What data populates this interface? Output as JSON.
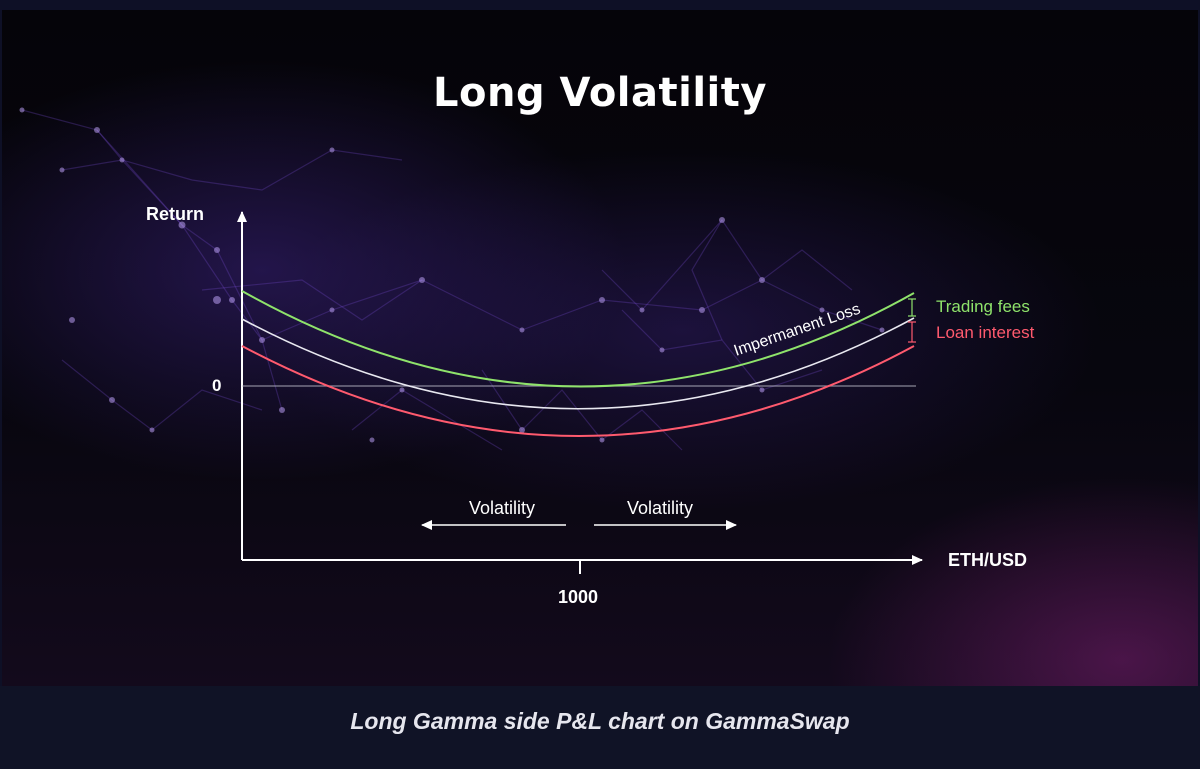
{
  "title": "Long Volatility",
  "caption": "Long Gamma side P&L chart on GammaSwap",
  "axes": {
    "y_label": "Return",
    "x_label": "ETH/USD",
    "zero_label": "0",
    "center_tick": "1000"
  },
  "annotations": {
    "volatility_left": "Volatility",
    "volatility_right": "Volatility",
    "impermanent_loss": "Impermanent Loss"
  },
  "legend": {
    "trading_fees": "Trading fees",
    "loan_interest": "Loan interest"
  },
  "colors": {
    "trading_fees": "#8fe36b",
    "loan_interest": "#ff5a6e",
    "impermanent_loss": "#e8e8f0",
    "axis": "#ffffff"
  },
  "chart_data": {
    "type": "line",
    "series": [
      {
        "name": "Trading fees",
        "shape": "parabola",
        "min_at_x": 1000,
        "relative_level": "highest"
      },
      {
        "name": "Impermanent Loss",
        "shape": "parabola",
        "min_at_x": 1000,
        "relative_level": "middle"
      },
      {
        "name": "Loan interest",
        "shape": "parabola",
        "min_at_x": 1000,
        "relative_level": "lowest"
      }
    ],
    "x_ticks": [
      "1000"
    ],
    "y_ticks": [
      "0"
    ],
    "xlabel": "ETH/USD",
    "ylabel": "Return"
  }
}
